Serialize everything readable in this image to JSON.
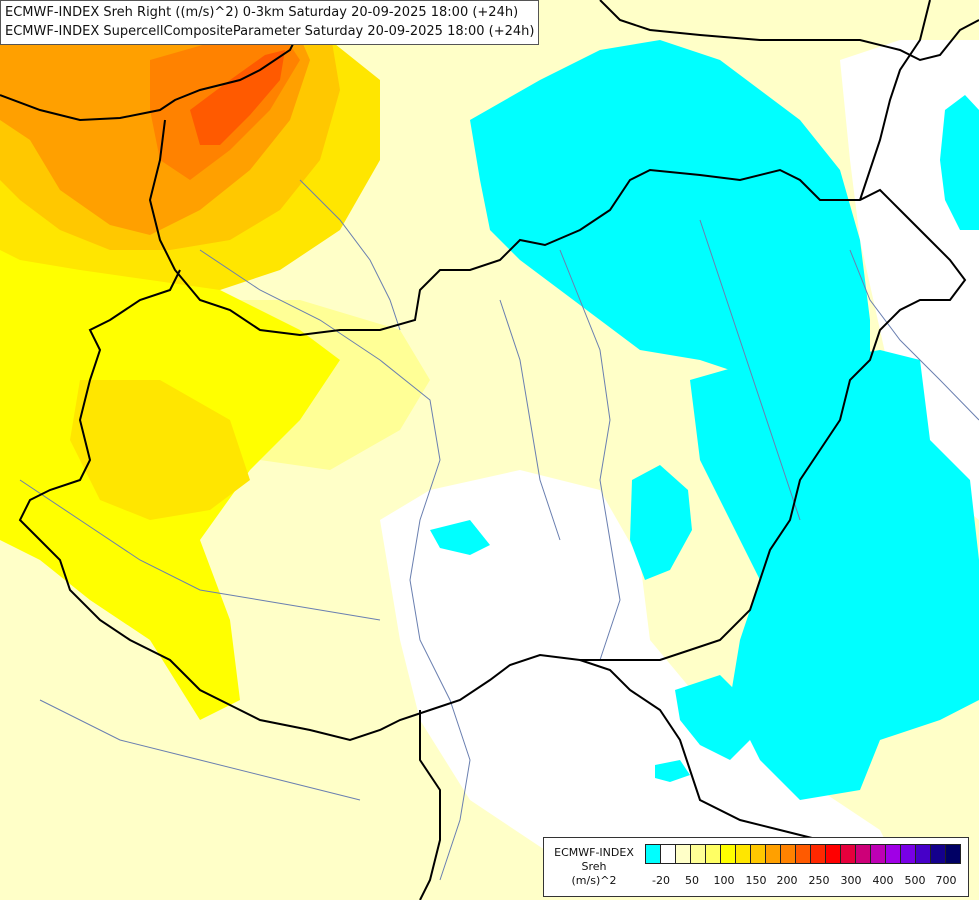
{
  "title": {
    "line1": "ECMWF-INDEX Sreh Right ((m/s)^2) 0-3km Saturday 20-09-2025 18:00 (+24h)",
    "line2": "ECMWF-INDEX SupercellCompositeParameter Saturday 20-09-2025 18:00 (+24h)"
  },
  "legend": {
    "source": "ECMWF-INDEX",
    "variable": "Sreh",
    "unit": "(m/s)^2",
    "colors": [
      "#00ffff",
      "#ffffff",
      "#ffffc8",
      "#ffff96",
      "#ffff64",
      "#ffff00",
      "#ffe600",
      "#ffc800",
      "#ffa000",
      "#ff8200",
      "#ff5a00",
      "#ff2800",
      "#ff0000",
      "#e6003c",
      "#cd0078",
      "#be00b4",
      "#a000e6",
      "#7800e6",
      "#4600c8",
      "#14008c",
      "#000064"
    ],
    "ticks": [
      "-20",
      "50",
      "100",
      "150",
      "200",
      "250",
      "300",
      "400",
      "500",
      "700"
    ]
  },
  "map": {
    "fill_colors": {
      "base": "#ffffc8",
      "light_yellow": "#ffff96",
      "yellow": "#ffff00",
      "gold": "#ffe600",
      "amber": "#ffc800",
      "orange": "#ffa000",
      "dark_orange": "#ff8200",
      "red_orange": "#ff5a00",
      "negative": "#00ffff",
      "neutral": "#ffffff"
    },
    "line_colors": {
      "border": "#000000",
      "river": "#6a7fb0"
    }
  }
}
